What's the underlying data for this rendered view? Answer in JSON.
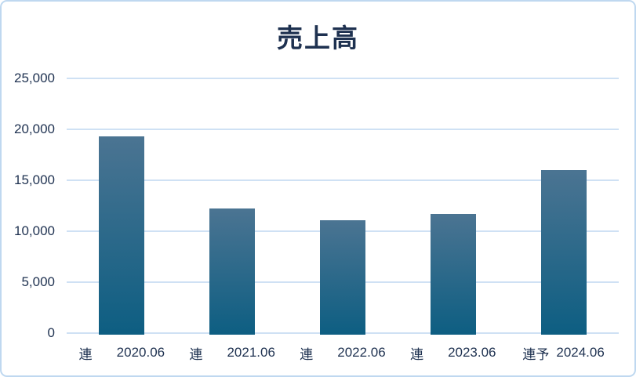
{
  "title": "売上高",
  "colors": {
    "text": "#1e3150",
    "gridline": "#cfe1f4",
    "border": "#bfd8f0",
    "background": "#ffffff",
    "bar_gradient_top": "#4b7492",
    "bar_gradient_bottom": "#0d5e82"
  },
  "chart_data": {
    "type": "bar",
    "title": "売上高",
    "categories": [
      "連 2020.06",
      "連 2021.06",
      "連 2022.06",
      "連 2023.06",
      "連予 2024.06"
    ],
    "x_labels": [
      {
        "marker": "連",
        "period": "2020.06",
        "forecast": false
      },
      {
        "marker": "連",
        "period": "2021.06",
        "forecast": false
      },
      {
        "marker": "連",
        "period": "2022.06",
        "forecast": false
      },
      {
        "marker": "連",
        "period": "2023.06",
        "forecast": false
      },
      {
        "marker": "連予",
        "period": "2024.06",
        "forecast": true
      }
    ],
    "values": [
      19300,
      12200,
      11100,
      11700,
      16000
    ],
    "xlabel": "",
    "ylabel": "",
    "ylim": [
      0,
      25000
    ],
    "ytick_step": 5000,
    "ytick_labels": [
      "0",
      "5,000",
      "10,000",
      "15,000",
      "20,000",
      "25,000"
    ],
    "grid": true,
    "legend_position": "none"
  }
}
